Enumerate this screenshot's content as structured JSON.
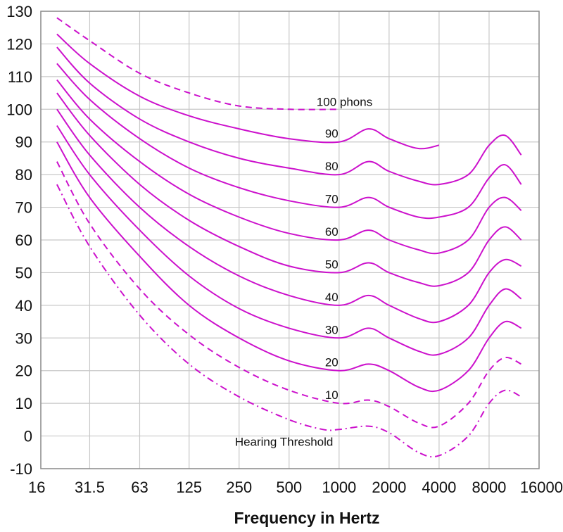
{
  "chart_data": {
    "type": "line",
    "title": "",
    "xlabel": "Frequency in Hertz",
    "ylabel": "",
    "x_scale": "log2",
    "xlim": [
      16,
      16000
    ],
    "ylim": [
      -10,
      130
    ],
    "x_tick_labels": [
      "16",
      "31.5",
      "63",
      "125",
      "250",
      "500",
      "1000",
      "2000",
      "4000",
      "8000",
      "16000"
    ],
    "y_tick_labels": [
      "130",
      "120",
      "110",
      "100",
      "90",
      "80",
      "70",
      "60",
      "50",
      "40",
      "30",
      "20",
      "10",
      "0",
      "-10"
    ],
    "grid": true,
    "colors": {
      "curve": "#cc11cc",
      "grid": "#c8c8c8",
      "frame": "#8c8c8c",
      "text": "#111111"
    },
    "series": [
      {
        "name": "Hearing Threshold",
        "style": "dash-dot",
        "points": [
          [
            20,
            77
          ],
          [
            31.5,
            58
          ],
          [
            63,
            37
          ],
          [
            125,
            22
          ],
          [
            250,
            12
          ],
          [
            500,
            5
          ],
          [
            800,
            2
          ],
          [
            1000,
            2
          ],
          [
            1500,
            3
          ],
          [
            2000,
            1
          ],
          [
            3000,
            -5
          ],
          [
            4000,
            -6
          ],
          [
            6000,
            0
          ],
          [
            8000,
            10
          ],
          [
            10000,
            14
          ],
          [
            12500,
            12
          ]
        ]
      },
      {
        "name": "10",
        "style": "dashed",
        "points": [
          [
            20,
            84
          ],
          [
            31.5,
            65
          ],
          [
            63,
            45
          ],
          [
            125,
            31
          ],
          [
            250,
            21
          ],
          [
            500,
            14
          ],
          [
            1000,
            10
          ],
          [
            1500,
            11
          ],
          [
            2000,
            9
          ],
          [
            3000,
            4
          ],
          [
            4000,
            3
          ],
          [
            6000,
            10
          ],
          [
            8000,
            20
          ],
          [
            10000,
            24
          ],
          [
            12500,
            22
          ]
        ]
      },
      {
        "name": "20",
        "style": "solid",
        "points": [
          [
            20,
            90
          ],
          [
            31.5,
            73
          ],
          [
            63,
            55
          ],
          [
            125,
            40
          ],
          [
            250,
            30
          ],
          [
            500,
            23
          ],
          [
            1000,
            20
          ],
          [
            1500,
            22
          ],
          [
            2000,
            20
          ],
          [
            3000,
            15
          ],
          [
            4000,
            14
          ],
          [
            6000,
            20
          ],
          [
            8000,
            30
          ],
          [
            10000,
            35
          ],
          [
            12500,
            33
          ]
        ]
      },
      {
        "name": "30",
        "style": "solid",
        "points": [
          [
            20,
            95
          ],
          [
            31.5,
            80
          ],
          [
            63,
            63
          ],
          [
            125,
            49
          ],
          [
            250,
            39
          ],
          [
            500,
            33
          ],
          [
            1000,
            30
          ],
          [
            1500,
            33
          ],
          [
            2000,
            30
          ],
          [
            3000,
            26
          ],
          [
            4000,
            25
          ],
          [
            6000,
            30
          ],
          [
            8000,
            40
          ],
          [
            10000,
            45
          ],
          [
            12500,
            42
          ]
        ]
      },
      {
        "name": "40",
        "style": "solid",
        "points": [
          [
            20,
            100
          ],
          [
            31.5,
            86
          ],
          [
            63,
            70
          ],
          [
            125,
            58
          ],
          [
            250,
            49
          ],
          [
            500,
            43
          ],
          [
            1000,
            40
          ],
          [
            1500,
            43
          ],
          [
            2000,
            40
          ],
          [
            3000,
            36
          ],
          [
            4000,
            35
          ],
          [
            6000,
            40
          ],
          [
            8000,
            50
          ],
          [
            10000,
            54
          ],
          [
            12500,
            52
          ]
        ]
      },
      {
        "name": "50",
        "style": "solid",
        "points": [
          [
            20,
            105
          ],
          [
            31.5,
            92
          ],
          [
            63,
            77
          ],
          [
            125,
            66
          ],
          [
            250,
            58
          ],
          [
            500,
            52
          ],
          [
            1000,
            50
          ],
          [
            1500,
            53
          ],
          [
            2000,
            50
          ],
          [
            3000,
            47
          ],
          [
            4000,
            46
          ],
          [
            6000,
            50
          ],
          [
            8000,
            60
          ],
          [
            10000,
            64
          ],
          [
            12500,
            60
          ]
        ]
      },
      {
        "name": "60",
        "style": "solid",
        "points": [
          [
            20,
            109
          ],
          [
            31.5,
            97
          ],
          [
            63,
            84
          ],
          [
            125,
            74
          ],
          [
            250,
            67
          ],
          [
            500,
            62
          ],
          [
            1000,
            60
          ],
          [
            1500,
            63
          ],
          [
            2000,
            60
          ],
          [
            3000,
            57
          ],
          [
            4000,
            56
          ],
          [
            6000,
            60
          ],
          [
            8000,
            70
          ],
          [
            10000,
            73
          ],
          [
            12500,
            69
          ]
        ]
      },
      {
        "name": "70",
        "style": "solid",
        "points": [
          [
            20,
            114
          ],
          [
            31.5,
            103
          ],
          [
            63,
            91
          ],
          [
            125,
            82
          ],
          [
            250,
            76
          ],
          [
            500,
            72
          ],
          [
            1000,
            70
          ],
          [
            1500,
            73
          ],
          [
            2000,
            70
          ],
          [
            3000,
            67
          ],
          [
            4000,
            67
          ],
          [
            6000,
            70
          ],
          [
            8000,
            79
          ],
          [
            10000,
            83
          ],
          [
            12500,
            77
          ]
        ]
      },
      {
        "name": "80",
        "style": "solid",
        "points": [
          [
            20,
            119
          ],
          [
            31.5,
            108
          ],
          [
            63,
            97
          ],
          [
            125,
            90
          ],
          [
            250,
            85
          ],
          [
            500,
            82
          ],
          [
            1000,
            80
          ],
          [
            1500,
            84
          ],
          [
            2000,
            81
          ],
          [
            3000,
            78
          ],
          [
            4000,
            77
          ],
          [
            6000,
            80
          ],
          [
            8000,
            89
          ],
          [
            10000,
            92
          ],
          [
            12500,
            86
          ]
        ]
      },
      {
        "name": "90",
        "style": "solid",
        "points": [
          [
            20,
            123
          ],
          [
            31.5,
            114
          ],
          [
            63,
            104
          ],
          [
            125,
            98
          ],
          [
            250,
            94
          ],
          [
            500,
            91
          ],
          [
            1000,
            90
          ],
          [
            1500,
            94
          ],
          [
            2000,
            91
          ],
          [
            3000,
            88
          ],
          [
            4000,
            89
          ]
        ]
      },
      {
        "name": "100 phons",
        "style": "dashed",
        "points": [
          [
            20,
            128
          ],
          [
            31.5,
            121
          ],
          [
            63,
            111
          ],
          [
            125,
            105
          ],
          [
            250,
            101
          ],
          [
            500,
            100
          ],
          [
            1000,
            100
          ]
        ]
      }
    ]
  }
}
